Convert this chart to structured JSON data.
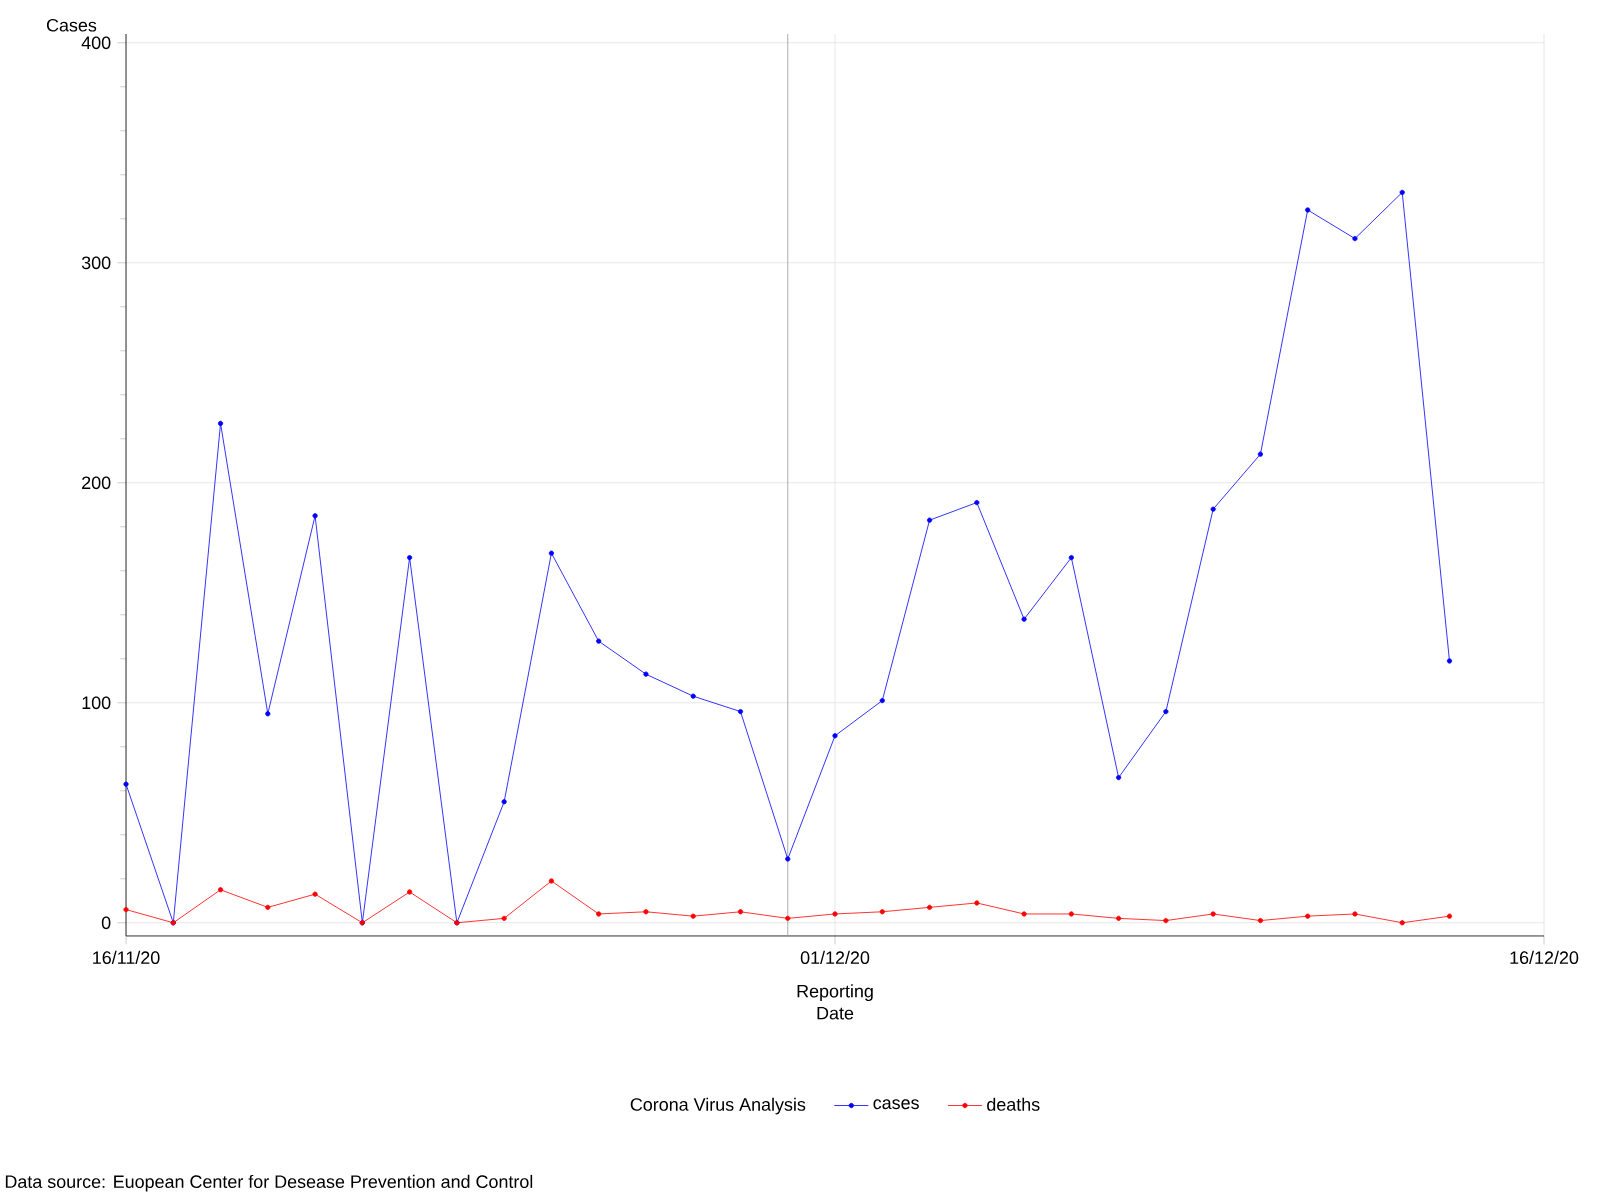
{
  "chart_data": {
    "type": "line",
    "x": [
      "2020-11-16",
      "2020-11-17",
      "2020-11-18",
      "2020-11-19",
      "2020-11-20",
      "2020-11-21",
      "2020-11-22",
      "2020-11-23",
      "2020-11-24",
      "2020-11-25",
      "2020-11-26",
      "2020-11-27",
      "2020-11-28",
      "2020-11-29",
      "2020-11-30",
      "2020-12-01",
      "2020-12-02",
      "2020-12-03",
      "2020-12-04",
      "2020-12-05",
      "2020-12-06",
      "2020-12-07",
      "2020-12-08",
      "2020-12-09",
      "2020-12-10",
      "2020-12-11",
      "2020-12-12",
      "2020-12-13",
      "2020-12-14"
    ],
    "series": [
      {
        "name": "cases",
        "color": "#0000ff",
        "values": [
          63,
          0,
          227,
          95,
          185,
          0,
          166,
          0,
          55,
          168,
          128,
          113,
          103,
          96,
          29,
          85,
          101,
          183,
          191,
          138,
          166,
          66,
          96,
          188,
          213,
          324,
          311,
          332,
          119
        ]
      },
      {
        "name": "deaths",
        "color": "#ff0000",
        "values": [
          6,
          0,
          15,
          7,
          13,
          0,
          14,
          0,
          2,
          19,
          4,
          5,
          3,
          5,
          2,
          4,
          5,
          7,
          9,
          4,
          4,
          2,
          1,
          4,
          1,
          3,
          4,
          0,
          3
        ]
      }
    ],
    "xlabel": "Reporting\nDate",
    "ylabel": "Cases",
    "legend_title": "Corona Virus Analysis",
    "xlim": [
      "2020-11-16",
      "2020-12-16"
    ],
    "xticks": [
      {
        "value": "2020-11-16",
        "label": "16/11/20"
      },
      {
        "value": "2020-12-01",
        "label": "01/12/20"
      },
      {
        "value": "2020-12-16",
        "label": "16/12/20"
      }
    ],
    "ylim": [
      -6,
      404
    ],
    "yticks": [
      0,
      100,
      200,
      300,
      400
    ],
    "ref_lines": [
      {
        "axis": "x",
        "value": "2020-11-30",
        "color": "#999999"
      }
    ],
    "grid": true,
    "legend": "bottom",
    "marker": "circle",
    "line_style": "solid",
    "annotations": [
      "Data source: Euopean Center for Desease Prevention and Control"
    ]
  }
}
